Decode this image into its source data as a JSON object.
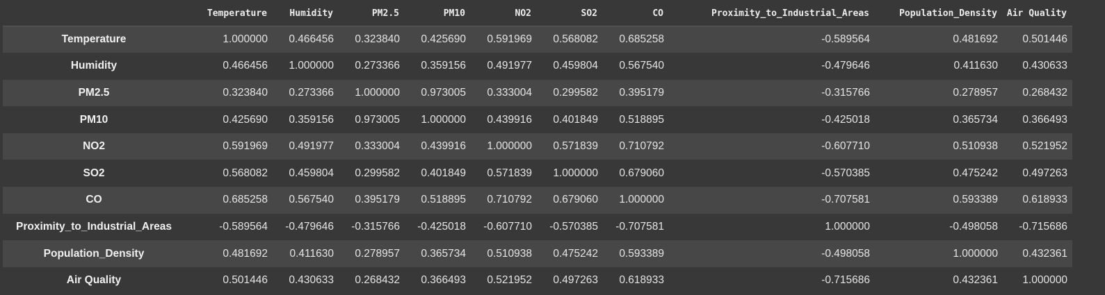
{
  "table": {
    "columns": [
      "Temperature",
      "Humidity",
      "PM2.5",
      "PM10",
      "NO2",
      "SO2",
      "CO",
      "Proximity_to_Industrial_Areas",
      "Population_Density",
      "Air Quality"
    ],
    "rows": [
      {
        "label": "Temperature",
        "values": [
          "1.000000",
          "0.466456",
          "0.323840",
          "0.425690",
          "0.591969",
          "0.568082",
          "0.685258",
          "-0.589564",
          "0.481692",
          "0.501446"
        ]
      },
      {
        "label": "Humidity",
        "values": [
          "0.466456",
          "1.000000",
          "0.273366",
          "0.359156",
          "0.491977",
          "0.459804",
          "0.567540",
          "-0.479646",
          "0.411630",
          "0.430633"
        ]
      },
      {
        "label": "PM2.5",
        "values": [
          "0.323840",
          "0.273366",
          "1.000000",
          "0.973005",
          "0.333004",
          "0.299582",
          "0.395179",
          "-0.315766",
          "0.278957",
          "0.268432"
        ]
      },
      {
        "label": "PM10",
        "values": [
          "0.425690",
          "0.359156",
          "0.973005",
          "1.000000",
          "0.439916",
          "0.401849",
          "0.518895",
          "-0.425018",
          "0.365734",
          "0.366493"
        ]
      },
      {
        "label": "NO2",
        "values": [
          "0.591969",
          "0.491977",
          "0.333004",
          "0.439916",
          "1.000000",
          "0.571839",
          "0.710792",
          "-0.607710",
          "0.510938",
          "0.521952"
        ]
      },
      {
        "label": "SO2",
        "values": [
          "0.568082",
          "0.459804",
          "0.299582",
          "0.401849",
          "0.571839",
          "1.000000",
          "0.679060",
          "-0.570385",
          "0.475242",
          "0.497263"
        ]
      },
      {
        "label": "CO",
        "values": [
          "0.685258",
          "0.567540",
          "0.395179",
          "0.518895",
          "0.710792",
          "0.679060",
          "1.000000",
          "-0.707581",
          "0.593389",
          "0.618933"
        ]
      },
      {
        "label": "Proximity_to_Industrial_Areas",
        "values": [
          "-0.589564",
          "-0.479646",
          "-0.315766",
          "-0.425018",
          "-0.607710",
          "-0.570385",
          "-0.707581",
          "1.000000",
          "-0.498058",
          "-0.715686"
        ]
      },
      {
        "label": "Population_Density",
        "values": [
          "0.481692",
          "0.411630",
          "0.278957",
          "0.365734",
          "0.510938",
          "0.475242",
          "0.593389",
          "-0.498058",
          "1.000000",
          "0.432361"
        ]
      },
      {
        "label": "Air Quality",
        "values": [
          "0.501446",
          "0.430633",
          "0.268432",
          "0.366493",
          "0.521952",
          "0.497263",
          "0.618933",
          "-0.715686",
          "0.432361",
          "1.000000"
        ]
      }
    ]
  }
}
